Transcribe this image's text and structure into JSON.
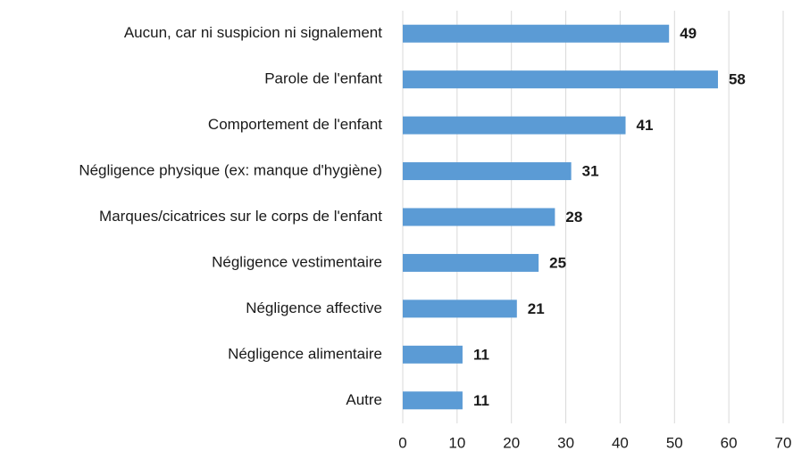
{
  "chart_data": {
    "type": "bar",
    "orientation": "horizontal",
    "categories": [
      "Aucun, car ni suspicion ni signalement",
      "Parole de l'enfant",
      "Comportement de l'enfant",
      "Négligence physique (ex: manque d'hygiène)",
      "Marques/cicatrices sur le corps de l'enfant",
      "Négligence vestimentaire",
      "Négligence affective",
      "Négligence alimentaire",
      "Autre"
    ],
    "values": [
      49,
      58,
      41,
      31,
      28,
      25,
      21,
      11,
      11
    ],
    "color": "#5b9bd5",
    "xlim": [
      0,
      70
    ],
    "xticks": [
      0,
      10,
      20,
      30,
      40,
      50,
      60,
      70
    ],
    "grid": true
  }
}
